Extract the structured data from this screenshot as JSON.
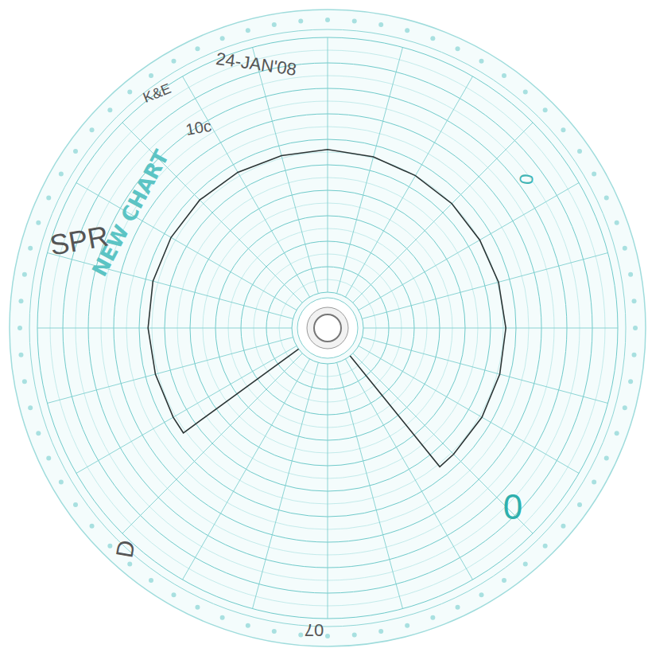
{
  "chart_data": {
    "type": "circular",
    "title": "NEW CHART",
    "annotations": [
      "24-JAN'08",
      "K&E",
      "10c",
      "SPR",
      "0",
      "0",
      "07",
      "D"
    ],
    "x": [
      15.6,
      15.6,
      16,
      17,
      18,
      19,
      20,
      21,
      22,
      23,
      24,
      1,
      2,
      3,
      4,
      5,
      6,
      7,
      8,
      9,
      9.4,
      9.4
    ],
    "values": [
      0,
      56,
      56,
      56,
      56.5,
      57,
      57,
      57,
      56.5,
      56,
      56,
      55.5,
      55,
      55,
      55,
      55.5,
      56,
      56,
      56,
      56,
      56,
      0
    ],
    "color": "#2b3535",
    "xlim": [
      0,
      24
    ],
    "xticks": [
      0,
      1,
      2,
      3,
      4,
      5,
      6,
      7,
      8,
      9,
      10,
      11,
      12,
      13,
      14,
      15,
      16,
      17,
      18,
      19,
      20,
      21,
      22,
      23
    ],
    "ylim": [
      0,
      100
    ],
    "yticks": [
      0,
      5,
      10,
      15,
      20,
      25,
      30,
      35,
      40,
      45,
      50,
      55,
      60,
      65,
      70,
      75,
      80,
      85,
      90,
      95,
      100
    ],
    "grid": true,
    "tick_labels": false
  }
}
